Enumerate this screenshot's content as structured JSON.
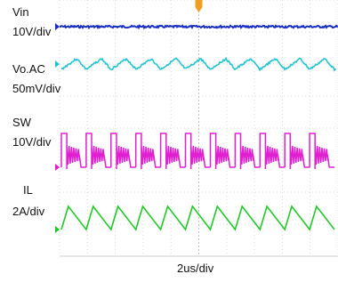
{
  "chart_data": {
    "type": "line",
    "xlabel": "2us/div",
    "grid": true,
    "time_divisions": 10,
    "trigger_marker_color": "#f0a020",
    "channels": [
      {
        "name_lines": [
          "Vin",
          "10V/div"
        ],
        "color": "#1a2fc0",
        "waveform": "dc-flat"
      },
      {
        "name_lines": [
          "Vo.AC",
          "50mV/div"
        ],
        "color": "#22c4d0",
        "waveform": "sawtooth-ripple"
      },
      {
        "name_lines": [
          "SW",
          "10V/div"
        ],
        "color": "#e020d0",
        "waveform": "switching-with-ringing"
      },
      {
        "name_lines": [
          "IL",
          "2A/div"
        ],
        "color": "#22c82a",
        "waveform": "triangle-current"
      }
    ],
    "switching_periods_shown": 11
  }
}
